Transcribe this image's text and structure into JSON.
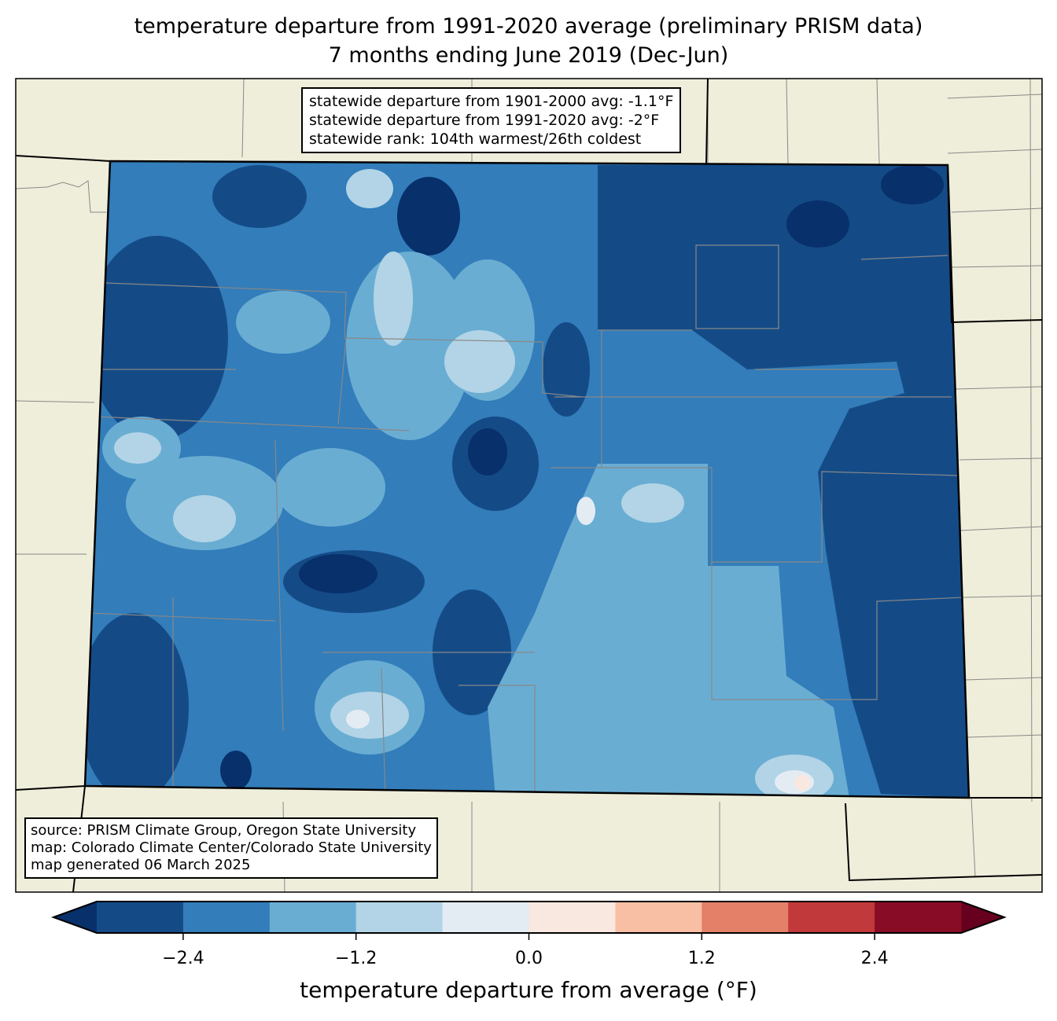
{
  "title": {
    "line1": "temperature departure from 1991-2020 average (preliminary PRISM data)",
    "line2": "7 months ending June 2019 (Dec-Jun)"
  },
  "stats": {
    "line1": "statewide departure from 1901-2000 avg: -1.1°F",
    "line2": "statewide departure from 1991-2020 avg: -2°F",
    "line3": "statewide rank: 104th warmest/26th coldest"
  },
  "credits": {
    "line1": "source: PRISM Climate Group, Oregon State University",
    "line2": "map: Colorado Climate Center/Colorado State University",
    "line3": "map generated 06 March 2025"
  },
  "colorbar": {
    "label": "temperature departure from average (°F)",
    "ticks": [
      "−2.4",
      "−1.2",
      "0.0",
      "1.2",
      "2.4"
    ],
    "tick_values": [
      -2.4,
      -1.2,
      0.0,
      1.2,
      2.4
    ],
    "range": [
      -3.0,
      3.0
    ],
    "under_color": "#08306b",
    "over_color": "#67001f",
    "colors": [
      "#144b87",
      "#327dba",
      "#6aadd3",
      "#b2d4e6",
      "#e4ecf3",
      "#f9e8df",
      "#f8bfa5",
      "#e48068",
      "#c2393b",
      "#880c25"
    ]
  },
  "map_colors": {
    "land": "#efeedb",
    "base": "#327dba"
  }
}
